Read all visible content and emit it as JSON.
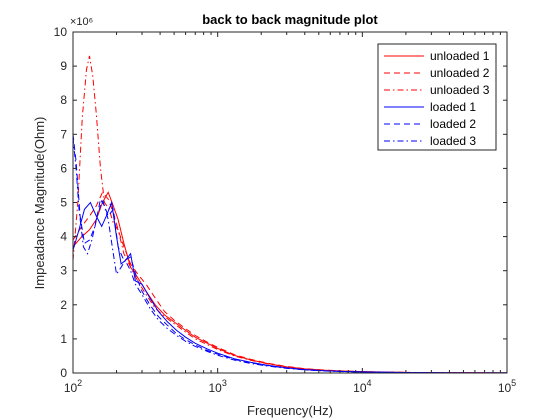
{
  "chart_data": {
    "type": "line",
    "title": "back to back magnitude plot",
    "xlabel": "Frequency(Hz)",
    "ylabel": "Impeadance Magnitude(Ohm)",
    "xscale": "log",
    "xlim": [
      100,
      100000
    ],
    "ylim": [
      0,
      10000000
    ],
    "y_multiplier_label": "×10⁶",
    "x_ticks": [
      100,
      1000,
      10000,
      100000
    ],
    "x_tick_labels": [
      {
        "base": "10",
        "exp": "2"
      },
      {
        "base": "10",
        "exp": "3"
      },
      {
        "base": "10",
        "exp": "4"
      },
      {
        "base": "10",
        "exp": "5"
      }
    ],
    "y_ticks": [
      0,
      1000000,
      2000000,
      3000000,
      4000000,
      5000000,
      6000000,
      7000000,
      8000000,
      9000000,
      10000000
    ],
    "y_tick_labels": [
      "0",
      "1",
      "2",
      "3",
      "4",
      "5",
      "6",
      "7",
      "8",
      "9",
      "10"
    ],
    "grid": false,
    "legend_position": "top-right",
    "series": [
      {
        "name": "unloaded 1",
        "color": "#ff0000",
        "dash": "solid",
        "x": [
          100,
          115,
          130,
          145,
          160,
          175,
          190,
          205,
          225,
          250,
          280,
          320,
          370,
          430,
          500,
          600,
          700,
          850,
          1000,
          1300,
          1700,
          2200,
          3000,
          4000,
          5500,
          7500,
          10000,
          15000,
          22000,
          35000,
          60000,
          100000
        ],
        "y": [
          3700000,
          4000000,
          4200000,
          4500000,
          5000000,
          5300000,
          4900000,
          4500000,
          3800000,
          3100000,
          2800000,
          2400000,
          2000000,
          1700000,
          1500000,
          1250000,
          1050000,
          870000,
          720000,
          520000,
          380000,
          280000,
          180000,
          120000,
          80000,
          55000,
          40000,
          25000,
          15000,
          9000,
          5000,
          3000
        ]
      },
      {
        "name": "unloaded 2",
        "color": "#ff0000",
        "dash": "dashed",
        "x": [
          100,
          115,
          130,
          145,
          160,
          175,
          190,
          205,
          225,
          250,
          280,
          320,
          370,
          430,
          500,
          600,
          700,
          850,
          1000,
          1300,
          1700,
          2200,
          3000,
          4000,
          5500,
          7500,
          10000,
          15000,
          22000,
          35000,
          60000,
          100000
        ],
        "y": [
          3900000,
          4300000,
          4600000,
          4900000,
          5300000,
          5100000,
          4700000,
          4200000,
          3700000,
          3200000,
          2900000,
          2600000,
          2200000,
          1800000,
          1550000,
          1300000,
          1100000,
          900000,
          750000,
          540000,
          400000,
          290000,
          190000,
          125000,
          85000,
          58000,
          42000,
          26000,
          16000,
          9500,
          5200,
          3000
        ]
      },
      {
        "name": "unloaded 3",
        "color": "#ff0000",
        "dash": "dashdot",
        "x": [
          100,
          108,
          116,
          124,
          130,
          137,
          145,
          155,
          165,
          178,
          190,
          205,
          225,
          250,
          280,
          320,
          370,
          430,
          500,
          600,
          700,
          850,
          1000,
          1300,
          1700,
          2200,
          3000,
          4000,
          5500,
          7500,
          10000,
          15000,
          22000,
          35000,
          60000,
          100000
        ],
        "y": [
          3300000,
          5000000,
          7500000,
          8900000,
          9300000,
          8700000,
          7600000,
          6000000,
          5000000,
          4800000,
          4400000,
          4200000,
          3500000,
          3100000,
          2700000,
          2300000,
          1900000,
          1650000,
          1450000,
          1200000,
          1000000,
          830000,
          690000,
          500000,
          370000,
          270000,
          175000,
          115000,
          78000,
          53000,
          38000,
          24000,
          14000,
          8500,
          4800,
          2800
        ]
      },
      {
        "name": "loaded 1",
        "color": "#0000ff",
        "dash": "solid",
        "x": [
          100,
          110,
          120,
          132,
          145,
          158,
          170,
          185,
          200,
          215,
          230,
          250,
          270,
          300,
          340,
          390,
          450,
          520,
          600,
          700,
          850,
          1000,
          1300,
          1700,
          2200,
          3000,
          4000,
          5500,
          7500,
          10000,
          15000,
          22000,
          35000,
          60000,
          100000
        ],
        "y": [
          3600000,
          4200000,
          4800000,
          5000000,
          4600000,
          4300000,
          4600000,
          5000000,
          4000000,
          3200000,
          3300000,
          3500000,
          2700000,
          2600000,
          2200000,
          1800000,
          1500000,
          1250000,
          1050000,
          870000,
          700000,
          580000,
          420000,
          310000,
          230000,
          150000,
          100000,
          65000,
          45000,
          32000,
          20000,
          12000,
          7000,
          4000,
          2500
        ]
      },
      {
        "name": "loaded 2",
        "color": "#0000ff",
        "dash": "dashed",
        "x": [
          100,
          105,
          112,
          120,
          130,
          142,
          155,
          165,
          175,
          190,
          205,
          225,
          250,
          275,
          300,
          340,
          390,
          450,
          520,
          600,
          700,
          850,
          1000,
          1300,
          1700,
          2200,
          3000,
          4000,
          5500,
          7500,
          10000,
          15000,
          22000,
          35000,
          60000,
          100000
        ],
        "y": [
          7000000,
          6200000,
          4600000,
          3800000,
          3900000,
          4300000,
          5100000,
          4900000,
          4600000,
          4800000,
          3700000,
          3300000,
          3400000,
          2800000,
          2400000,
          2000000,
          1650000,
          1400000,
          1150000,
          980000,
          820000,
          660000,
          550000,
          400000,
          295000,
          220000,
          145000,
          97000,
          63000,
          44000,
          31000,
          19000,
          11500,
          6800,
          3900,
          2400
        ]
      },
      {
        "name": "loaded 3",
        "color": "#0000ff",
        "dash": "dashdot",
        "x": [
          100,
          105,
          110,
          118,
          126,
          135,
          145,
          160,
          175,
          190,
          200,
          215,
          230,
          250,
          270,
          300,
          340,
          390,
          450,
          520,
          600,
          700,
          850,
          1000,
          1300,
          1700,
          2200,
          3000,
          4000,
          5500,
          7500,
          10000,
          15000,
          22000,
          35000,
          60000,
          100000
        ],
        "y": [
          6900000,
          6000000,
          4800000,
          3700000,
          3500000,
          3900000,
          4500000,
          5100000,
          4500000,
          3500000,
          2900000,
          3100000,
          3300000,
          3000000,
          2600000,
          2300000,
          1900000,
          1550000,
          1300000,
          1100000,
          930000,
          780000,
          630000,
          520000,
          380000,
          280000,
          205000,
          135000,
          90000,
          60000,
          41000,
          29000,
          18000,
          11000,
          6500,
          3700,
          2300
        ]
      }
    ]
  }
}
